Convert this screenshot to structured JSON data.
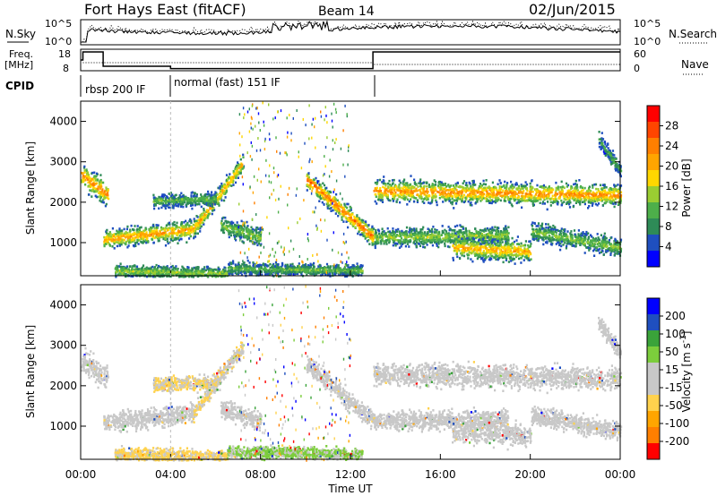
{
  "header": {
    "station": "Fort Hays East (fitACF)",
    "beam": "Beam 14",
    "date": "02/Jun/2015"
  },
  "labels": {
    "nsky": "N.Sky",
    "nsearch": "N.Search",
    "freq_line1": "Freq.",
    "freq_line2": "[MHz]",
    "nave": "Nave",
    "cpid": "CPID",
    "cpid_1": "rbsp 200 IF",
    "cpid_2": "normal (fast) 151 IF",
    "noise_tick_hi": "10^5",
    "noise_tick_lo": "10^0",
    "freq_tick_hi": "18",
    "freq_tick_lo": "8",
    "nave_tick_hi": "60",
    "nave_tick_lo": "0"
  },
  "colors": {
    "power": [
      "#0000ff",
      "#1f4fbf",
      "#2e8b57",
      "#4daf4a",
      "#9acd32",
      "#ffd700",
      "#ffa500",
      "#ff7f00",
      "#ff4500",
      "#ff0000"
    ],
    "velocity": [
      "#ff0000",
      "#ff7f00",
      "#ffa500",
      "#ffd24d",
      "#c8c8c8",
      "#c8c8c8",
      "#7ccd3c",
      "#3aa33a",
      "#1f4fbf",
      "#0000ff"
    ]
  },
  "chart_data": [
    {
      "type": "heatmap",
      "name": "power",
      "xlabel": "",
      "ylabel": "Slant Range [km]",
      "xlim": [
        0,
        24
      ],
      "ylim": [
        180,
        4500
      ],
      "yticks": [
        "4000",
        "3000",
        "2000",
        "1000"
      ],
      "colorbar": {
        "label": "Power [dB]",
        "ticks": [
          "28",
          "24",
          "20",
          "16",
          "12",
          "8",
          "4"
        ],
        "range": [
          0,
          30
        ]
      }
    },
    {
      "type": "heatmap",
      "name": "velocity",
      "xlabel": "Time UT",
      "ylabel": "Slant Range [km]",
      "xlim": [
        0,
        24
      ],
      "ylim": [
        180,
        4500
      ],
      "xticks": [
        "00:00",
        "04:00",
        "08:00",
        "12:00",
        "16:00",
        "20:00",
        "00:00"
      ],
      "yticks": [
        "4000",
        "3000",
        "2000",
        "1000"
      ],
      "colorbar": {
        "label": "Velocity [m s^-1]",
        "ticks": [
          "200",
          "100",
          "50",
          "15",
          "-15",
          "-50",
          "-100",
          "-200"
        ],
        "range": [
          -250,
          250
        ]
      }
    },
    {
      "type": "line",
      "name": "frequency",
      "x": [
        0,
        0.1,
        1,
        4,
        13,
        24
      ],
      "y": [
        13,
        17.5,
        9.5,
        8.2,
        17.5,
        17.5
      ],
      "ylim": [
        8,
        18
      ]
    }
  ]
}
